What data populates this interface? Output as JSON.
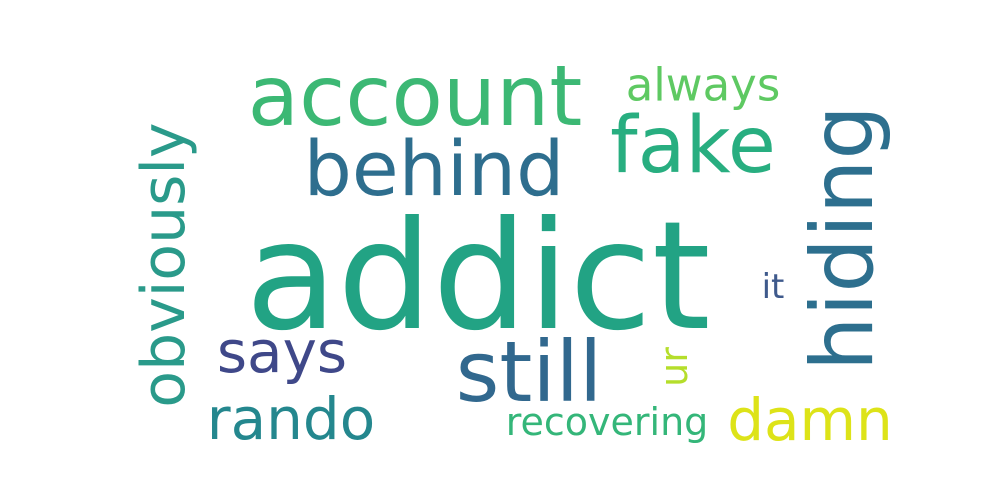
{
  "word_cloud": {
    "words": [
      {
        "key": "addict",
        "text": "addict",
        "color": "#22a384"
      },
      {
        "key": "account",
        "text": "account",
        "color": "#3cb874"
      },
      {
        "key": "behind",
        "text": "behind",
        "color": "#2e6e8e"
      },
      {
        "key": "fake",
        "text": "fake",
        "color": "#28ae80"
      },
      {
        "key": "always",
        "text": "always",
        "color": "#5ec962"
      },
      {
        "key": "obviously",
        "text": "obviously",
        "color": "#2a9a8a"
      },
      {
        "key": "hiding",
        "text": "hiding",
        "color": "#2d6f8e"
      },
      {
        "key": "says",
        "text": "says",
        "color": "#3f4889"
      },
      {
        "key": "still",
        "text": "still",
        "color": "#31688e"
      },
      {
        "key": "rando",
        "text": "rando",
        "color": "#24878e"
      },
      {
        "key": "recovering",
        "text": "recovering",
        "color": "#34b679"
      },
      {
        "key": "damn",
        "text": "damn",
        "color": "#dde318"
      },
      {
        "key": "ur",
        "text": "ur",
        "color": "#b5de2b"
      },
      {
        "key": "it",
        "text": "it",
        "color": "#3f5a8c"
      }
    ]
  }
}
